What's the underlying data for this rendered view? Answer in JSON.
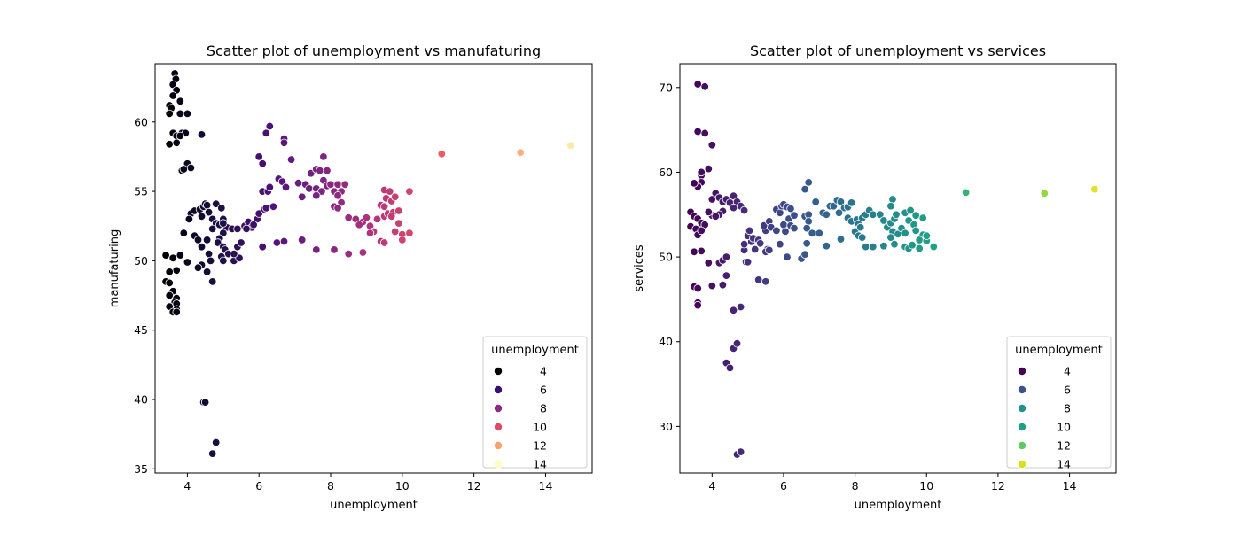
{
  "chart_data": [
    {
      "type": "scatter",
      "title": "Scatter plot of unemployment vs manufaturing",
      "xlabel": "unemployment",
      "ylabel": "manufaturing",
      "xlim": [
        3.1,
        15.3
      ],
      "ylim": [
        34.7,
        64.2
      ],
      "xticks": [
        4,
        6,
        8,
        10,
        12,
        14
      ],
      "yticks": [
        35,
        40,
        45,
        50,
        55,
        60
      ],
      "grid": false,
      "palette": "magma",
      "hue_range": [
        3.4,
        15.2
      ],
      "legend": {
        "title": "unemployment",
        "placement": "lower-right",
        "entries": [
          {
            "label": "4",
            "color": "#000004"
          },
          {
            "label": "6",
            "color": "#3b0f70"
          },
          {
            "label": "8",
            "color": "#8c2981"
          },
          {
            "label": "10",
            "color": "#de4968"
          },
          {
            "label": "12",
            "color": "#fe9f6d"
          },
          {
            "label": "14",
            "color": "#fcfdbf"
          }
        ]
      },
      "points": [
        [
          3.65,
          63.5
        ],
        [
          3.68,
          63.1
        ],
        [
          3.6,
          62.7
        ],
        [
          3.7,
          62.3
        ],
        [
          3.6,
          61.9
        ],
        [
          3.8,
          61.5
        ],
        [
          3.5,
          61.2
        ],
        [
          3.55,
          61.0
        ],
        [
          3.5,
          60.6
        ],
        [
          3.8,
          60.6
        ],
        [
          4.0,
          60.6
        ],
        [
          3.6,
          59.2
        ],
        [
          3.7,
          59.0
        ],
        [
          3.85,
          59.2
        ],
        [
          3.95,
          59.2
        ],
        [
          4.4,
          59.1
        ],
        [
          3.5,
          58.4
        ],
        [
          3.7,
          58.5
        ],
        [
          3.8,
          59.0
        ],
        [
          4.0,
          57.0
        ],
        [
          4.1,
          56.7
        ],
        [
          3.85,
          56.5
        ],
        [
          3.9,
          56.6
        ],
        [
          4.1,
          53.4
        ],
        [
          4.2,
          53.6
        ],
        [
          4.05,
          53.0
        ],
        [
          4.35,
          53.7
        ],
        [
          4.45,
          53.9
        ],
        [
          4.5,
          54.1
        ],
        [
          4.55,
          54.0
        ],
        [
          4.6,
          53.5
        ],
        [
          4.4,
          53.2
        ],
        [
          3.9,
          52.0
        ],
        [
          4.2,
          51.8
        ],
        [
          4.3,
          51.5
        ],
        [
          4.55,
          51.5
        ],
        [
          4.4,
          51.0
        ],
        [
          4.6,
          50.5
        ],
        [
          4.65,
          50.0
        ],
        [
          4.4,
          49.7
        ],
        [
          4.3,
          49.5
        ],
        [
          4.55,
          49.2
        ],
        [
          4.7,
          48.5
        ],
        [
          4.0,
          49.9
        ],
        [
          3.8,
          50.4
        ],
        [
          3.4,
          50.4
        ],
        [
          3.6,
          50.2
        ],
        [
          3.7,
          49.3
        ],
        [
          3.5,
          49.2
        ],
        [
          3.4,
          48.5
        ],
        [
          3.5,
          48.4
        ],
        [
          3.6,
          47.8
        ],
        [
          3.5,
          47.5
        ],
        [
          3.7,
          47.3
        ],
        [
          3.65,
          47.0
        ],
        [
          3.7,
          46.9
        ],
        [
          3.5,
          46.7
        ],
        [
          3.7,
          46.5
        ],
        [
          3.6,
          46.3
        ],
        [
          3.7,
          46.3
        ],
        [
          4.45,
          39.8
        ],
        [
          4.5,
          39.8
        ],
        [
          4.8,
          36.9
        ],
        [
          4.7,
          36.1
        ],
        [
          4.7,
          53.0
        ],
        [
          4.8,
          52.7
        ],
        [
          4.7,
          52.3
        ],
        [
          4.9,
          52.6
        ],
        [
          5.0,
          53.0
        ],
        [
          5.1,
          52.4
        ],
        [
          5.0,
          52.0
        ],
        [
          4.9,
          51.6
        ],
        [
          4.85,
          51.3
        ],
        [
          5.0,
          51.0
        ],
        [
          5.05,
          50.8
        ],
        [
          5.15,
          50.5
        ],
        [
          4.95,
          50.3
        ],
        [
          5.0,
          50.0
        ],
        [
          5.3,
          50.0
        ],
        [
          5.45,
          50.2
        ],
        [
          5.3,
          50.5
        ],
        [
          5.4,
          51.0
        ],
        [
          5.5,
          51.3
        ],
        [
          4.8,
          54.1
        ],
        [
          4.95,
          53.8
        ],
        [
          5.0,
          52.7
        ],
        [
          5.25,
          52.3
        ],
        [
          5.4,
          52.3
        ],
        [
          5.6,
          52.5
        ],
        [
          5.7,
          52.8
        ],
        [
          5.8,
          52.4
        ],
        [
          5.95,
          53.0
        ],
        [
          5.65,
          52.3
        ],
        [
          5.85,
          52.6
        ],
        [
          6.0,
          53.4
        ],
        [
          6.15,
          53.7
        ],
        [
          6.0,
          57.5
        ],
        [
          6.1,
          57.0
        ],
        [
          6.2,
          59.2
        ],
        [
          6.3,
          59.7
        ],
        [
          6.1,
          55.0
        ],
        [
          6.25,
          55.0
        ],
        [
          6.3,
          55.3
        ],
        [
          6.4,
          53.9
        ],
        [
          6.2,
          53.8
        ],
        [
          6.55,
          55.9
        ],
        [
          6.7,
          58.8
        ],
        [
          6.7,
          58.5
        ],
        [
          6.65,
          55.7
        ],
        [
          6.9,
          57.3
        ],
        [
          6.75,
          55.3
        ],
        [
          7.1,
          55.6
        ],
        [
          6.1,
          51.0
        ],
        [
          6.5,
          51.3
        ],
        [
          6.7,
          51.4
        ],
        [
          7.2,
          51.5
        ],
        [
          7.2,
          54.6
        ],
        [
          7.3,
          55.5
        ],
        [
          7.4,
          55.2
        ],
        [
          7.45,
          56.3
        ],
        [
          7.6,
          56.6
        ],
        [
          7.7,
          56.5
        ],
        [
          7.8,
          57.5
        ],
        [
          7.9,
          56.5
        ],
        [
          7.6,
          55.2
        ],
        [
          7.75,
          55.0
        ],
        [
          7.8,
          55.8
        ],
        [
          7.9,
          55.4
        ],
        [
          8.0,
          55.5
        ],
        [
          8.1,
          55.0
        ],
        [
          8.2,
          55.5
        ],
        [
          8.3,
          55.0
        ],
        [
          8.4,
          55.5
        ],
        [
          8.2,
          54.7
        ],
        [
          8.3,
          54.2
        ],
        [
          7.6,
          54.7
        ],
        [
          8.1,
          53.9
        ],
        [
          8.2,
          53.8
        ],
        [
          7.6,
          50.8
        ],
        [
          8.1,
          50.8
        ],
        [
          8.5,
          50.5
        ],
        [
          8.9,
          50.6
        ],
        [
          8.5,
          53.1
        ],
        [
          8.7,
          53.0
        ],
        [
          8.9,
          52.8
        ],
        [
          8.8,
          52.6
        ],
        [
          9.0,
          53.1
        ],
        [
          9.1,
          52.5
        ],
        [
          9.2,
          52.1
        ],
        [
          9.3,
          53.0
        ],
        [
          9.5,
          53.2
        ],
        [
          9.6,
          53.4
        ],
        [
          9.1,
          52.0
        ],
        [
          9.5,
          55.1
        ],
        [
          9.65,
          55.0
        ],
        [
          9.55,
          54.5
        ],
        [
          9.7,
          54.3
        ],
        [
          9.8,
          54.6
        ],
        [
          9.4,
          54.0
        ],
        [
          9.5,
          53.9
        ],
        [
          9.75,
          53.5
        ],
        [
          9.9,
          53.6
        ],
        [
          9.7,
          53.2
        ],
        [
          9.9,
          52.7
        ],
        [
          9.8,
          52.1
        ],
        [
          10.0,
          51.9
        ],
        [
          10.2,
          52.0
        ],
        [
          9.4,
          51.4
        ],
        [
          9.5,
          51.3
        ],
        [
          10.0,
          51.5
        ],
        [
          10.2,
          55.0
        ],
        [
          11.1,
          57.7
        ],
        [
          13.3,
          57.8
        ],
        [
          14.7,
          58.3
        ]
      ]
    },
    {
      "type": "scatter",
      "title": "Scatter plot of unemployment vs services",
      "xlabel": "unemployment",
      "ylabel": "services",
      "xlim": [
        3.1,
        15.3
      ],
      "ylim": [
        24.5,
        72.8
      ],
      "xticks": [
        4,
        6,
        8,
        10,
        12,
        14
      ],
      "yticks": [
        30,
        40,
        50,
        60,
        70
      ],
      "grid": false,
      "palette": "viridis",
      "hue_range": [
        3.4,
        15.2
      ],
      "legend": {
        "title": "unemployment",
        "placement": "lower-right",
        "entries": [
          {
            "label": "4",
            "color": "#440154"
          },
          {
            "label": "6",
            "color": "#3b528b"
          },
          {
            "label": "8",
            "color": "#21918c"
          },
          {
            "label": "10",
            "color": "#1fa187"
          },
          {
            "label": "12",
            "color": "#5ec962"
          },
          {
            "label": "14",
            "color": "#d8e219"
          }
        ]
      },
      "points": [
        [
          3.6,
          70.4
        ],
        [
          3.8,
          70.1
        ],
        [
          3.6,
          64.8
        ],
        [
          3.8,
          64.6
        ],
        [
          4.0,
          63.2
        ],
        [
          3.9,
          60.4
        ],
        [
          3.7,
          59.6
        ],
        [
          3.7,
          58.8
        ],
        [
          3.6,
          58.3
        ],
        [
          3.5,
          58.7
        ],
        [
          3.7,
          60.0
        ],
        [
          4.1,
          57.5
        ],
        [
          4.0,
          56.8
        ],
        [
          4.2,
          57.0
        ],
        [
          4.3,
          56.5
        ],
        [
          4.4,
          56.8
        ],
        [
          4.5,
          56.4
        ],
        [
          4.6,
          57.2
        ],
        [
          4.7,
          56.5
        ],
        [
          4.8,
          56.0
        ],
        [
          4.9,
          55.5
        ],
        [
          4.6,
          55.8
        ],
        [
          4.3,
          55.4
        ],
        [
          4.2,
          55.0
        ],
        [
          4.0,
          54.9
        ],
        [
          4.1,
          54.8
        ],
        [
          3.9,
          55.3
        ],
        [
          3.4,
          55.3
        ],
        [
          3.5,
          54.8
        ],
        [
          3.6,
          54.5
        ],
        [
          3.7,
          54.0
        ],
        [
          3.8,
          53.8
        ],
        [
          3.4,
          53.6
        ],
        [
          3.55,
          53.3
        ],
        [
          3.6,
          52.6
        ],
        [
          3.7,
          53.1
        ],
        [
          3.5,
          50.6
        ],
        [
          3.7,
          50.7
        ],
        [
          3.5,
          46.5
        ],
        [
          3.6,
          46.3
        ],
        [
          3.6,
          44.6
        ],
        [
          3.6,
          44.3
        ],
        [
          3.9,
          49.3
        ],
        [
          4.0,
          46.6
        ],
        [
          4.2,
          49.3
        ],
        [
          4.3,
          49.6
        ],
        [
          4.4,
          50.0
        ],
        [
          4.3,
          46.7
        ],
        [
          4.4,
          47.8
        ],
        [
          4.4,
          37.5
        ],
        [
          4.5,
          36.9
        ],
        [
          4.6,
          39.2
        ],
        [
          4.6,
          43.7
        ],
        [
          4.7,
          39.8
        ],
        [
          4.7,
          26.7
        ],
        [
          4.8,
          27.0
        ],
        [
          4.8,
          44.1
        ],
        [
          4.9,
          50.8
        ],
        [
          4.95,
          49.4
        ],
        [
          5.0,
          49.4
        ],
        [
          4.9,
          51.5
        ],
        [
          5.1,
          51.8
        ],
        [
          5.0,
          52.5
        ],
        [
          5.05,
          53.1
        ],
        [
          5.15,
          52.2
        ],
        [
          5.3,
          52.0
        ],
        [
          5.2,
          50.9
        ],
        [
          5.35,
          51.6
        ],
        [
          5.55,
          50.9
        ],
        [
          5.5,
          53.1
        ],
        [
          5.45,
          53.7
        ],
        [
          5.6,
          54.2
        ],
        [
          5.65,
          53.5
        ],
        [
          5.8,
          53.1
        ],
        [
          5.8,
          55.6
        ],
        [
          5.9,
          55.2
        ],
        [
          5.95,
          56.0
        ],
        [
          6.0,
          56.2
        ],
        [
          6.1,
          55.9
        ],
        [
          6.2,
          55.7
        ],
        [
          6.15,
          54.5
        ],
        [
          6.3,
          54.9
        ],
        [
          6.0,
          53.8
        ],
        [
          6.2,
          53.7
        ],
        [
          6.05,
          53.0
        ],
        [
          6.3,
          53.4
        ],
        [
          5.3,
          47.3
        ],
        [
          5.5,
          47.1
        ],
        [
          6.1,
          50.0
        ],
        [
          6.5,
          49.8
        ],
        [
          5.9,
          51.5
        ],
        [
          5.5,
          50.6
        ],
        [
          5.6,
          50.8
        ],
        [
          6.6,
          54.8
        ],
        [
          6.7,
          55.0
        ],
        [
          6.7,
          54.2
        ],
        [
          6.65,
          53.4
        ],
        [
          6.8,
          52.8
        ],
        [
          7.0,
          52.8
        ],
        [
          6.65,
          51.6
        ],
        [
          6.6,
          50.3
        ],
        [
          6.6,
          58.0
        ],
        [
          6.7,
          58.8
        ],
        [
          6.9,
          56.5
        ],
        [
          7.1,
          55.2
        ],
        [
          7.2,
          55.0
        ],
        [
          7.3,
          56.0
        ],
        [
          7.4,
          56.0
        ],
        [
          7.5,
          56.7
        ],
        [
          7.6,
          56.5
        ],
        [
          7.7,
          55.8
        ],
        [
          7.8,
          55.9
        ],
        [
          7.9,
          56.4
        ],
        [
          7.55,
          55.2
        ],
        [
          7.8,
          54.6
        ],
        [
          7.9,
          54.2
        ],
        [
          8.05,
          54.4
        ],
        [
          8.1,
          53.9
        ],
        [
          8.2,
          54.6
        ],
        [
          8.3,
          55.0
        ],
        [
          8.4,
          55.5
        ],
        [
          8.5,
          55.0
        ],
        [
          8.0,
          53.0
        ],
        [
          8.1,
          52.5
        ],
        [
          8.2,
          52.3
        ],
        [
          8.3,
          51.2
        ],
        [
          8.5,
          51.2
        ],
        [
          7.6,
          52.1
        ],
        [
          8.15,
          53.5
        ],
        [
          7.2,
          51.3
        ],
        [
          8.7,
          55.0
        ],
        [
          8.8,
          54.3
        ],
        [
          8.9,
          53.5
        ],
        [
          9.0,
          54.0
        ],
        [
          9.1,
          54.5
        ],
        [
          9.15,
          55.0
        ],
        [
          9.05,
          53.0
        ],
        [
          9.2,
          52.7
        ],
        [
          9.3,
          53.4
        ],
        [
          9.0,
          52.3
        ],
        [
          9.1,
          51.5
        ],
        [
          8.8,
          51.3
        ],
        [
          9.05,
          56.8
        ],
        [
          9.0,
          56.0
        ],
        [
          9.4,
          52.8
        ],
        [
          9.4,
          51.2
        ],
        [
          9.5,
          51.0
        ],
        [
          9.4,
          55.2
        ],
        [
          9.55,
          55.5
        ],
        [
          9.7,
          54.9
        ],
        [
          9.9,
          54.6
        ],
        [
          9.5,
          54.3
        ],
        [
          9.65,
          53.8
        ],
        [
          9.7,
          53.1
        ],
        [
          9.9,
          52.6
        ],
        [
          9.8,
          52.0
        ],
        [
          10.0,
          51.9
        ],
        [
          10.0,
          52.5
        ],
        [
          9.8,
          51.0
        ],
        [
          10.2,
          51.2
        ],
        [
          9.6,
          51.4
        ],
        [
          11.1,
          57.6
        ],
        [
          13.3,
          57.5
        ],
        [
          14.7,
          58.0
        ]
      ]
    }
  ]
}
